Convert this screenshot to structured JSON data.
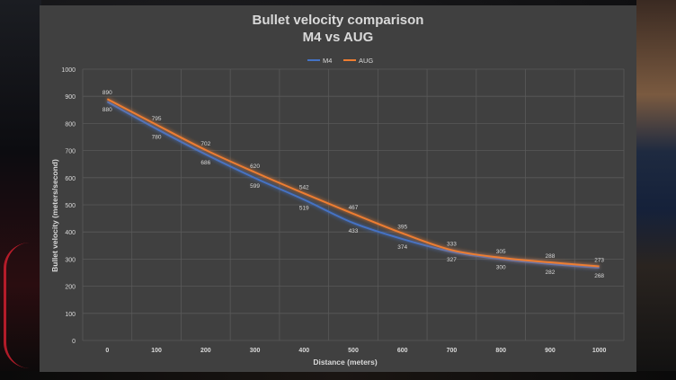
{
  "chart_data": {
    "type": "line",
    "title": "Bullet velocity comparison",
    "subtitle": "M4 vs AUG",
    "xlabel": "Distance (meters)",
    "ylabel": "Bullet velocity (meters/second)",
    "x": [
      0,
      100,
      200,
      300,
      400,
      500,
      600,
      700,
      800,
      900,
      1000
    ],
    "ylim": [
      0,
      1000
    ],
    "yticks": [
      0,
      100,
      200,
      300,
      400,
      500,
      600,
      700,
      800,
      900,
      1000
    ],
    "grid": true,
    "legend_position": "top",
    "series": [
      {
        "name": "M4",
        "color": "#4472c4",
        "values": [
          880,
          780,
          686,
          599,
          519,
          433,
          374,
          327,
          300,
          282,
          268
        ]
      },
      {
        "name": "AUG",
        "color": "#ed7d31",
        "values": [
          890,
          795,
          702,
          620,
          542,
          467,
          395,
          333,
          305,
          288,
          273
        ]
      }
    ]
  }
}
